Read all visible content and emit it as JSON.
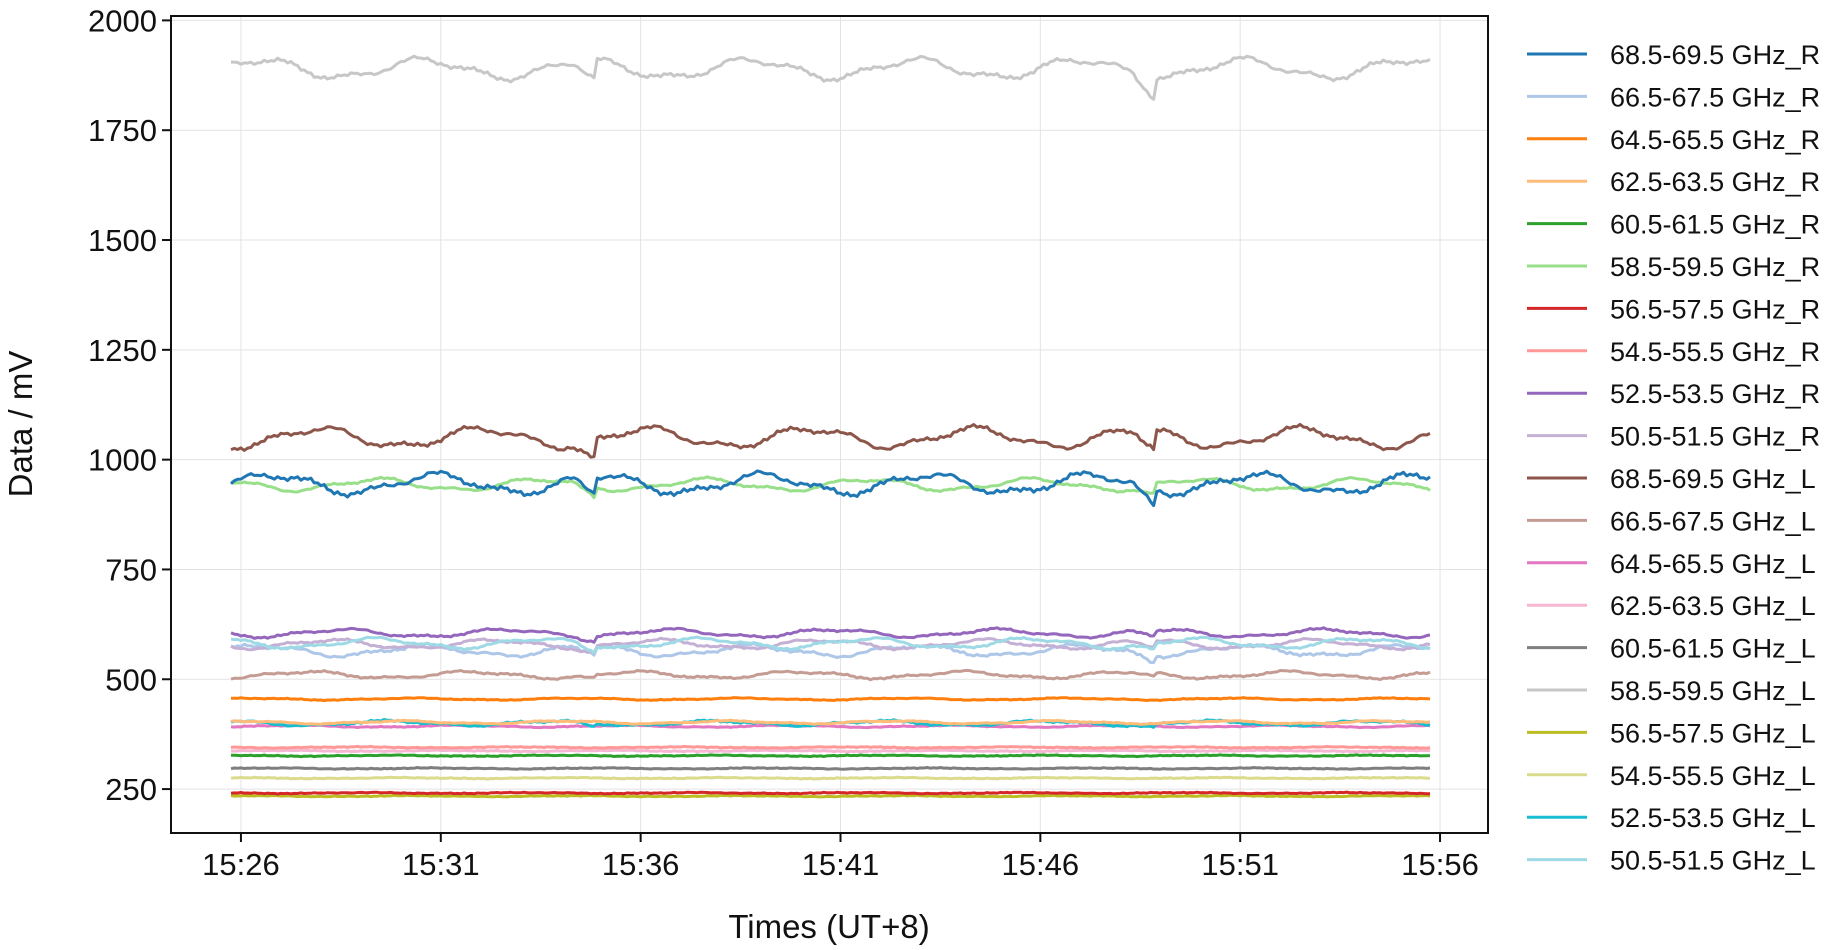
{
  "chart_data": {
    "type": "line",
    "title": "",
    "xlabel": "Times (UT+8)",
    "ylabel": "Data / mV",
    "x_ticks": [
      "15:26",
      "15:31",
      "15:36",
      "15:41",
      "15:46",
      "15:51",
      "15:56"
    ],
    "x_tick_minutes": [
      926,
      931,
      936,
      941,
      946,
      951,
      956
    ],
    "xlim": [
      "15:24:15",
      "15:57:12"
    ],
    "x_data_range": [
      "15:25:45",
      "15:55:45"
    ],
    "y_ticks": [
      250,
      500,
      750,
      1000,
      1250,
      1500,
      1750,
      2000
    ],
    "ylim": [
      150,
      2010
    ],
    "grid": true,
    "legend_position": "outside right",
    "series": [
      {
        "name": "68.5-69.5 GHz_R",
        "color": "#1f77b4",
        "base": 945,
        "amp": 20,
        "wiggle": 5,
        "dip": 38
      },
      {
        "name": "66.5-67.5 GHz_R",
        "color": "#aec7e8",
        "base": 565,
        "amp": 11,
        "wiggle": 3,
        "dip": 16
      },
      {
        "name": "64.5-65.5 GHz_R",
        "color": "#ff7f0e",
        "base": 455,
        "amp": 2,
        "wiggle": 1,
        "dip": 0
      },
      {
        "name": "62.5-63.5 GHz_R",
        "color": "#ffbb78",
        "base": 402,
        "amp": 3,
        "wiggle": 1,
        "dip": 0
      },
      {
        "name": "60.5-61.5 GHz_R",
        "color": "#2ca02c",
        "base": 326,
        "amp": 1,
        "wiggle": 1,
        "dip": 0
      },
      {
        "name": "58.5-59.5 GHz_R",
        "color": "#98df8a",
        "base": 943,
        "amp": 12,
        "wiggle": 2,
        "dip": 24
      },
      {
        "name": "56.5-57.5 GHz_R",
        "color": "#d62728",
        "base": 241,
        "amp": 1,
        "wiggle": 1,
        "dip": 0
      },
      {
        "name": "54.5-55.5 GHz_R",
        "color": "#ff9896",
        "base": 345,
        "amp": 1,
        "wiggle": 1,
        "dip": 0
      },
      {
        "name": "52.5-53.5 GHz_R",
        "color": "#9467bd",
        "base": 605,
        "amp": 8,
        "wiggle": 2,
        "dip": 12
      },
      {
        "name": "50.5-51.5 GHz_R",
        "color": "#c5b0d5",
        "base": 580,
        "amp": 9,
        "wiggle": 2,
        "dip": 14
      },
      {
        "name": "68.5-69.5 GHz_L",
        "color": "#8c564b",
        "base": 1050,
        "amp": 20,
        "wiggle": 4,
        "dip": 45
      },
      {
        "name": "66.5-67.5 GHz_L",
        "color": "#c49c94",
        "base": 510,
        "amp": 7,
        "wiggle": 2,
        "dip": 8
      },
      {
        "name": "64.5-65.5 GHz_L",
        "color": "#e377c2",
        "base": 393,
        "amp": 2,
        "wiggle": 1,
        "dip": 0
      },
      {
        "name": "62.5-63.5 GHz_L",
        "color": "#f7b6d2",
        "base": 337,
        "amp": 1,
        "wiggle": 1,
        "dip": 0
      },
      {
        "name": "60.5-61.5 GHz_L",
        "color": "#7f7f7f",
        "base": 297,
        "amp": 1,
        "wiggle": 1,
        "dip": 0
      },
      {
        "name": "58.5-59.5 GHz_L",
        "color": "#c7c7c7",
        "base": 1890,
        "amp": 20,
        "wiggle": 4,
        "dip": 45
      },
      {
        "name": "56.5-57.5 GHz_L",
        "color": "#bcbd22",
        "base": 234,
        "amp": 1,
        "wiggle": 1,
        "dip": 0
      },
      {
        "name": "54.5-55.5 GHz_L",
        "color": "#dbdb8d",
        "base": 275,
        "amp": 1,
        "wiggle": 1,
        "dip": 0
      },
      {
        "name": "52.5-53.5 GHz_L",
        "color": "#17becf",
        "base": 400,
        "amp": 5,
        "wiggle": 2,
        "dip": 8
      },
      {
        "name": "50.5-51.5 GHz_L",
        "color": "#9edae5",
        "base": 582,
        "amp": 10,
        "wiggle": 2,
        "dip": 14
      }
    ]
  }
}
